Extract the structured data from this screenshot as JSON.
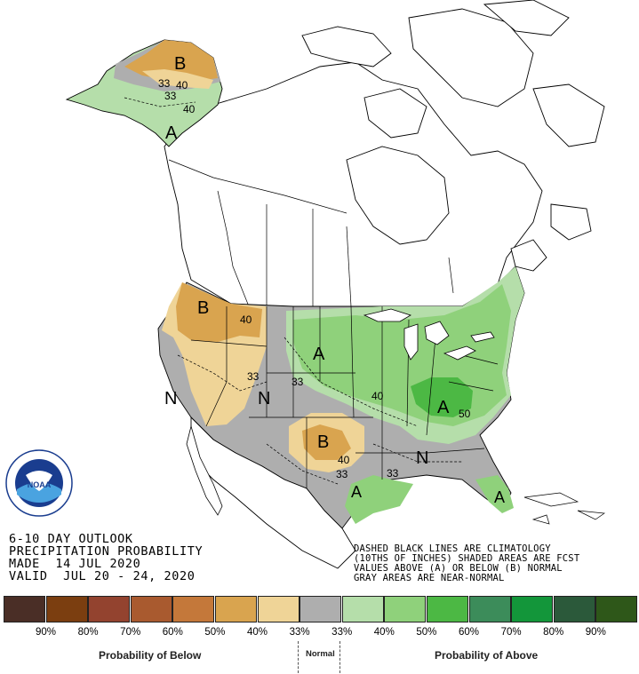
{
  "title_lines": [
    "6-10 DAY OUTLOOK",
    "PRECIPITATION PROBABILITY",
    "MADE  14 JUL 2020",
    "VALID  JUL 20 - 24, 2020"
  ],
  "note_lines": [
    "DASHED BLACK LINES ARE CLIMATOLOGY",
    "(10THS OF INCHES) SHADED AREAS ARE FCST",
    "VALUES ABOVE (A) OR BELOW (B) NORMAL",
    "GRAY AREAS ARE NEAR-NORMAL"
  ],
  "logo": {
    "text": "NOAA",
    "ring_text": "NATIONAL OCEANIC AND ATMOSPHERIC ADMINISTRATION · U.S. DEPARTMENT OF COMMERCE"
  },
  "legend": {
    "swatches": [
      {
        "color": "#4a2e26",
        "label": "90%"
      },
      {
        "color": "#7b3e10",
        "label": "80%"
      },
      {
        "color": "#93432f",
        "label": "70%"
      },
      {
        "color": "#a95a2f",
        "label": "60%"
      },
      {
        "color": "#c4783a",
        "label": "50%"
      },
      {
        "color": "#d9a44f",
        "label": "40%"
      },
      {
        "color": "#efd497",
        "label": "33%"
      },
      {
        "color": "#aeaeae",
        "label": "33%"
      },
      {
        "color": "#b5deaa",
        "label": "40%"
      },
      {
        "color": "#8fd17b",
        "label": "50%"
      },
      {
        "color": "#4cb844",
        "label": "60%"
      },
      {
        "color": "#3c8c5a",
        "label": "70%"
      },
      {
        "color": "#13963a",
        "label": "80%"
      },
      {
        "color": "#2b593a",
        "label": "90%"
      },
      {
        "color": "#2e5719",
        "label": ""
      }
    ],
    "below_caption": "Probability of Below",
    "normal_caption": "Normal",
    "above_caption": "Probability of Above"
  },
  "map_labels": {
    "alaska_b": "B",
    "alaska_40": "40",
    "alaska_33": "33",
    "alaska_40b": "40",
    "alaska_a": "A",
    "nw_b": "B",
    "nw_40": "40",
    "w_33": "33",
    "w_n": "N",
    "c_n": "N",
    "c_33": "33",
    "mw_a": "A",
    "mw_40": "40",
    "east_a": "A",
    "east_50": "50",
    "s_b": "B",
    "s_40": "40",
    "s_33": "33",
    "se_33": "33",
    "se_n": "N",
    "gulf_a": "A",
    "fl_a": "A"
  }
}
